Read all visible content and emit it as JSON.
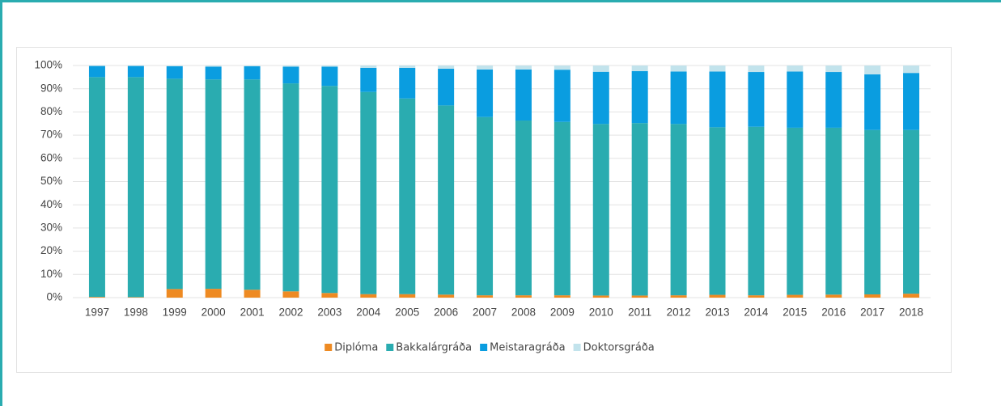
{
  "chart_data": {
    "type": "stacked_bar",
    "categories": [
      "1997",
      "1998",
      "1999",
      "2000",
      "2001",
      "2002",
      "2003",
      "2004",
      "2005",
      "2006",
      "2007",
      "2008",
      "2009",
      "2010",
      "2011",
      "2012",
      "2013",
      "2014",
      "2015",
      "2016",
      "2017",
      "2018"
    ],
    "series": [
      {
        "name": "Diplóma",
        "color": "#ee8a22",
        "values": [
          0.3,
          0.2,
          3.7,
          3.8,
          3.4,
          2.7,
          2.0,
          1.5,
          1.5,
          1.3,
          1.0,
          1.0,
          1.0,
          0.9,
          0.9,
          1.0,
          1.2,
          1.0,
          1.2,
          1.3,
          1.4,
          1.7
        ]
      },
      {
        "name": "Bakkalárgráða",
        "color": "#2aacb0",
        "values": [
          94.7,
          94.8,
          90.6,
          90.2,
          90.6,
          89.6,
          89.2,
          87.1,
          84.3,
          81.5,
          76.8,
          75.3,
          74.7,
          73.9,
          74.3,
          73.8,
          72.2,
          72.6,
          72.0,
          71.9,
          70.8,
          70.5
        ]
      },
      {
        "name": "Meistaragráða",
        "color": "#0a9de0",
        "values": [
          4.8,
          4.8,
          5.4,
          5.5,
          5.7,
          7.2,
          8.3,
          10.4,
          13.2,
          15.8,
          20.5,
          22.0,
          22.5,
          22.5,
          22.4,
          22.6,
          24.0,
          23.6,
          24.2,
          24.0,
          24.0,
          24.6
        ]
      },
      {
        "name": "Doktorsgráða",
        "color": "#c2e3ec",
        "values": [
          0.2,
          0.2,
          0.3,
          0.5,
          0.3,
          0.5,
          0.5,
          1.0,
          1.0,
          1.4,
          1.7,
          1.7,
          1.8,
          2.7,
          2.4,
          2.6,
          2.6,
          2.8,
          2.6,
          2.8,
          3.8,
          3.2
        ]
      }
    ],
    "ylim": [
      0,
      100
    ],
    "yticks": [
      {
        "value": 0,
        "label": "0%"
      },
      {
        "value": 10,
        "label": "10%"
      },
      {
        "value": 20,
        "label": "20%"
      },
      {
        "value": 30,
        "label": "30%"
      },
      {
        "value": 40,
        "label": "40%"
      },
      {
        "value": 50,
        "label": "50%"
      },
      {
        "value": 60,
        "label": "60%"
      },
      {
        "value": 70,
        "label": "70%"
      },
      {
        "value": 80,
        "label": "80%"
      },
      {
        "value": 90,
        "label": "90%"
      },
      {
        "value": 100,
        "label": "100%"
      }
    ],
    "grid": true,
    "legend": "bottom"
  }
}
